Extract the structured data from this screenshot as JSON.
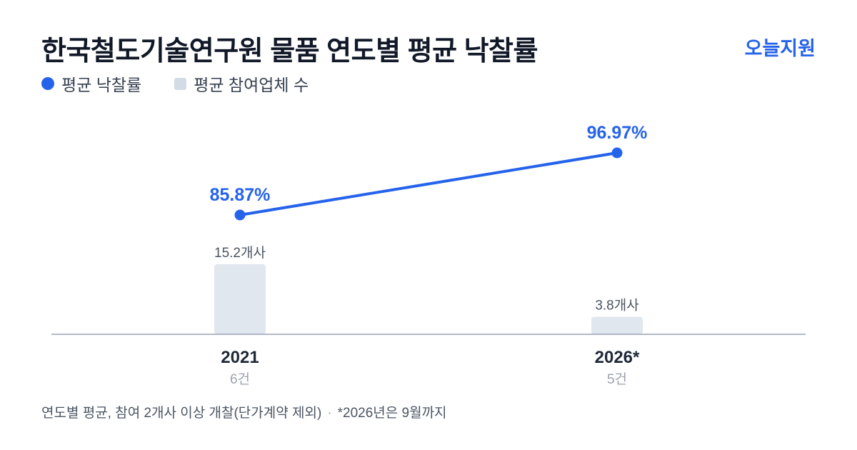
{
  "header": {
    "title": "한국철도기술연구원 물품 연도별 평균 낙찰률",
    "brand": "오늘지원"
  },
  "legend": {
    "rate_label": "평균 낙찰률",
    "bidders_label": "평균 참여업체 수"
  },
  "colors": {
    "accent": "#2563eb",
    "bar": "#e1e7ef",
    "axis": "#9aa4b2"
  },
  "chart_data": {
    "type": "bar",
    "categories": [
      "2021",
      "2026*"
    ],
    "category_counts": [
      "6건",
      "5건"
    ],
    "series": [
      {
        "name": "평균 낙찰률",
        "kind": "line",
        "values": [
          85.87,
          96.97
        ],
        "labels": [
          "85.87%",
          "96.97%"
        ]
      },
      {
        "name": "평균 참여업체 수",
        "kind": "bar",
        "values": [
          15.2,
          3.8
        ],
        "labels": [
          "15.2개사",
          "3.8개사"
        ]
      }
    ]
  },
  "footnote": {
    "text": "연도별 평균, 참여 2개사 이상 개찰(단가계약 제외)",
    "separator": "·",
    "note": "*2026년은 9월까지"
  }
}
